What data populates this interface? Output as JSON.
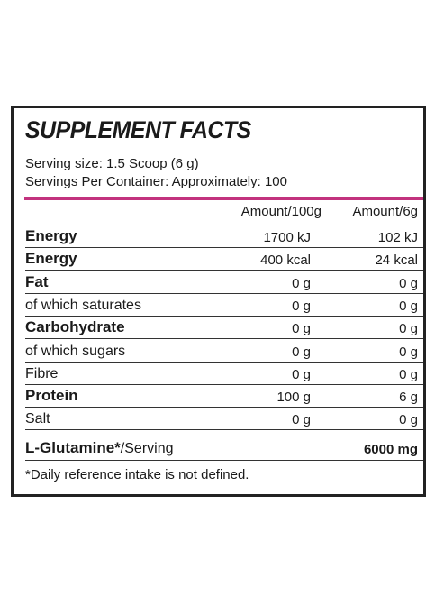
{
  "title": "SUPPLEMENT FACTS",
  "serving_size": "Serving size: 1.5 Scoop (6 g)",
  "servings_per_container": "Servings Per Container: Approximately: 100",
  "columns": {
    "per100": "Amount/100g",
    "perServing": "Amount/6g"
  },
  "rows": [
    {
      "name": "Energy",
      "bold": true,
      "per100": "1700 kJ",
      "perServing": "102 kJ"
    },
    {
      "name": "Energy",
      "bold": true,
      "per100": "400 kcal",
      "perServing": "24 kcal"
    },
    {
      "name": "Fat",
      "bold": true,
      "per100": "0 g",
      "perServing": "0 g"
    },
    {
      "name": "of which saturates",
      "bold": false,
      "per100": "0 g",
      "perServing": "0 g"
    },
    {
      "name": "Carbohydrate",
      "bold": true,
      "per100": "0 g",
      "perServing": "0 g"
    },
    {
      "name": "of which sugars",
      "bold": false,
      "per100": "0 g",
      "perServing": "0 g"
    },
    {
      "name": "Fibre",
      "bold": false,
      "per100": "0 g",
      "perServing": "0 g"
    },
    {
      "name": "Protein",
      "bold": true,
      "per100": "100 g",
      "perServing": "6 g"
    },
    {
      "name": "Salt",
      "bold": false,
      "per100": "0 g",
      "perServing": "0 g"
    }
  ],
  "glutamine": {
    "name": "L-Glutamine*",
    "suffix": "/Serving",
    "value": "6000 mg"
  },
  "footnote": "*Daily reference intake is not defined.",
  "colors": {
    "accent": "#c2327e",
    "border": "#222222"
  }
}
